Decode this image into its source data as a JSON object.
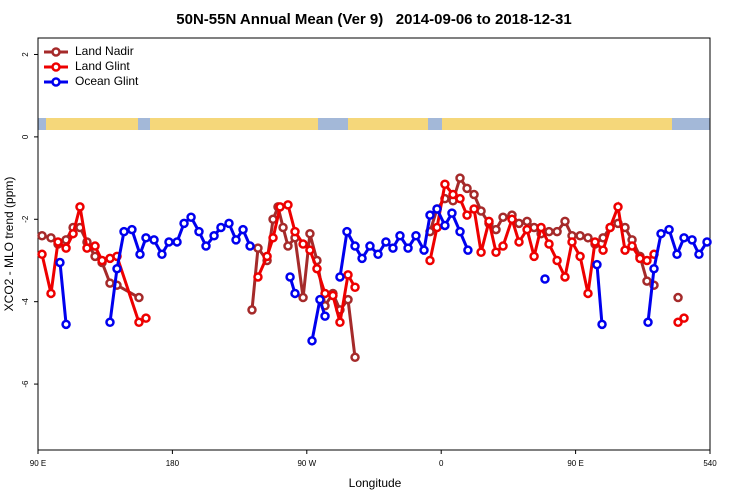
{
  "chart_data": {
    "type": "line",
    "title": "50N-55N Annual Mean (Ver 9)   2014-09-06 to 2018-12-31",
    "x_label": "Longitude",
    "y_label": "XCO2 - MLO trend (ppm)",
    "xlim": [
      90,
      540
    ],
    "xticks": [
      {
        "value": 90,
        "label": "90 E"
      },
      180,
      {
        "value": 270,
        "label": "90 W"
      },
      {
        "value": 360,
        "label": "0"
      },
      {
        "value": 450,
        "label": "90 E"
      },
      540
    ],
    "ylim": [
      -7.6,
      2.4
    ],
    "yticks": [
      -6,
      -4,
      -2,
      0,
      2
    ],
    "legend": "top-left",
    "series": [
      {
        "name": "Land Nadir",
        "color": "#a52a2a",
        "x": [
          92.7,
          98.7,
          103.4,
          108.8,
          113.5,
          118.1,
          122.8,
          128.2,
          132.9,
          138.2,
          142.9,
          157.6,
          null,
          233.3,
          237.3,
          243.4,
          247.4,
          250.7,
          254.1,
          257.4,
          262.1,
          267.5,
          272.1,
          276.8,
          282.2,
          287.5,
          292.2,
          297.6,
          302.3,
          null,
          352.5,
          357.2,
          362.5,
          367.9,
          372.6,
          377.3,
          382.0,
          386.7,
          392.0,
          396.7,
          401.4,
          407.4,
          412.1,
          417.5,
          422.2,
          426.9,
          432.2,
          437.6,
          442.9,
          447.6,
          453.0,
          458.3,
          463.0,
          468.4,
          473.1,
          478.4,
          483.1,
          487.8,
          493.1,
          497.8,
          502.5,
          null,
          518.6
        ],
        "values": [
          -2.4,
          -2.45,
          -2.6,
          -2.5,
          -2.2,
          -2.2,
          -2.55,
          -2.9,
          -3.05,
          -3.55,
          -3.6,
          -3.9,
          null,
          -4.2,
          -2.7,
          -3.0,
          -2.0,
          -1.7,
          -2.2,
          -2.65,
          -2.45,
          -3.9,
          -2.35,
          -3.0,
          -4.1,
          -3.8,
          -4.2,
          -3.95,
          -5.35,
          null,
          -2.3,
          -1.75,
          -1.5,
          -1.55,
          -1.0,
          -1.25,
          -1.4,
          -1.8,
          -2.1,
          -2.25,
          -1.95,
          -1.9,
          -2.1,
          -2.05,
          -2.2,
          -2.35,
          -2.3,
          -2.3,
          -2.05,
          -2.4,
          -2.4,
          -2.45,
          -2.6,
          -2.45,
          -2.2,
          -2.1,
          -2.2,
          -2.5,
          -2.9,
          -3.5,
          -3.6,
          null,
          -3.9
        ]
      },
      {
        "name": "Land Glint",
        "color": "#ee0000",
        "x": [
          92.7,
          98.7,
          103.4,
          108.8,
          113.5,
          118.1,
          122.8,
          128.2,
          132.9,
          138.2,
          142.9,
          157.6,
          162.3,
          null,
          237.3,
          243.4,
          247.4,
          252.1,
          257.4,
          262.1,
          267.5,
          272.1,
          276.8,
          282.2,
          287.5,
          292.2,
          297.6,
          302.3,
          null,
          352.5,
          357.2,
          362.5,
          367.9,
          372.6,
          377.3,
          382.0,
          386.7,
          392.0,
          396.7,
          401.4,
          407.4,
          412.1,
          417.5,
          422.2,
          426.9,
          432.2,
          437.6,
          442.9,
          447.6,
          453.0,
          458.3,
          463.0,
          468.4,
          473.1,
          478.4,
          483.1,
          487.8,
          493.1,
          497.8,
          502.5,
          null,
          518.6,
          522.6
        ],
        "values": [
          -2.85,
          -3.8,
          -2.55,
          -2.7,
          -2.35,
          -1.7,
          -2.7,
          -2.65,
          -3.0,
          -2.95,
          -2.9,
          -4.5,
          -4.4,
          null,
          -3.4,
          -2.9,
          -2.45,
          -1.7,
          -1.65,
          -2.3,
          -2.6,
          -2.75,
          -3.2,
          -3.8,
          -3.85,
          -4.5,
          -3.35,
          -3.65,
          null,
          -3.0,
          -2.2,
          -1.15,
          -1.4,
          -1.5,
          -1.9,
          -1.75,
          -2.8,
          -2.05,
          -2.8,
          -2.65,
          -2.0,
          -2.55,
          -2.25,
          -2.9,
          -2.2,
          -2.6,
          -3.0,
          -3.4,
          -2.55,
          -2.9,
          -3.8,
          -2.55,
          -2.75,
          -2.2,
          -1.7,
          -2.75,
          -2.65,
          -2.95,
          -3.0,
          -2.85,
          null,
          -4.5,
          -4.4
        ]
      },
      {
        "name": "Ocean Glint",
        "color": "#0000ee",
        "x": [
          104.7,
          108.8,
          null,
          138.2,
          142.9,
          147.6,
          152.9,
          158.3,
          162.3,
          167.7,
          173.0,
          177.7,
          183.1,
          187.8,
          192.5,
          197.8,
          202.5,
          207.9,
          212.5,
          217.9,
          222.6,
          227.3,
          232.0,
          null,
          258.8,
          262.1,
          null,
          273.5,
          278.8,
          282.2,
          null,
          292.2,
          296.9,
          302.3,
          307.0,
          312.3,
          317.7,
          323.0,
          327.7,
          332.4,
          337.8,
          343.1,
          348.5,
          352.5,
          357.2,
          362.5,
          367.2,
          372.6,
          377.9,
          null,
          429.5,
          null,
          464.3,
          467.7,
          null,
          498.5,
          502.5,
          507.2,
          512.6,
          517.9,
          522.6,
          528.0,
          532.6,
          538.0
        ],
        "values": [
          -3.05,
          -4.55,
          null,
          -4.5,
          -3.2,
          -2.3,
          -2.25,
          -2.85,
          -2.45,
          -2.5,
          -2.85,
          -2.55,
          -2.55,
          -2.1,
          -1.95,
          -2.3,
          -2.65,
          -2.4,
          -2.2,
          -2.1,
          -2.5,
          -2.25,
          -2.65,
          null,
          -3.4,
          -3.8,
          null,
          -4.95,
          -3.95,
          -4.35,
          null,
          -3.4,
          -2.3,
          -2.65,
          -2.95,
          -2.65,
          -2.85,
          -2.55,
          -2.7,
          -2.4,
          -2.7,
          -2.4,
          -2.75,
          -1.9,
          -1.75,
          -2.15,
          -1.85,
          -2.3,
          -2.75,
          null,
          -3.45,
          null,
          -3.1,
          -4.55,
          null,
          -4.5,
          -3.2,
          -2.35,
          -2.25,
          -2.85,
          -2.45,
          -2.5,
          -2.85,
          -2.55
        ]
      }
    ]
  }
}
